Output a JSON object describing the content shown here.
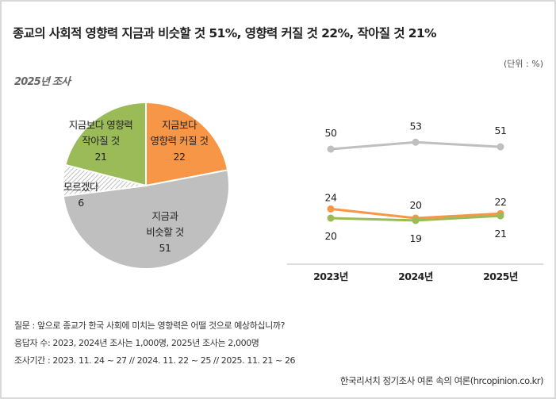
{
  "title": "종교의 사회적 영향력 지금과 비슷할 것 51%, 영향력 커질 것 22%, 작아질 것 21%",
  "unit": "(단위 : %)",
  "subtitle": "2025년 조사",
  "colors": {
    "increase": "#f79646",
    "similar": "#bfbfbf",
    "unknown": "hatched",
    "decrease": "#9bbb59"
  },
  "chart_data": [
    {
      "type": "pie",
      "title": "2025년 조사",
      "slices": [
        {
          "label": "지금보다 영향력 커질 것",
          "value": 22,
          "color": "#f79646",
          "lines": [
            "지금보다",
            "영향력 커질 것"
          ]
        },
        {
          "label": "지금과 비슷할 것",
          "value": 51,
          "color": "#bfbfbf",
          "lines": [
            "지금과",
            "비슷할 것"
          ]
        },
        {
          "label": "모르겠다",
          "value": 6,
          "color": "hatched",
          "lines": [
            "모르겠다"
          ]
        },
        {
          "label": "지금보다 영향력 작아질 것",
          "value": 21,
          "color": "#9bbb59",
          "lines": [
            "지금보다 영향력",
            "작아질 것"
          ]
        }
      ]
    },
    {
      "type": "line",
      "categories": [
        "2023년",
        "2024년",
        "2025년"
      ],
      "series": [
        {
          "values": [
            50,
            53,
            51
          ],
          "color": "#bfbfbf"
        },
        {
          "values": [
            24,
            20,
            22
          ],
          "color": "#f79646"
        },
        {
          "values": [
            20,
            19,
            21
          ],
          "color": "#9bbb59"
        }
      ],
      "grid": false
    }
  ],
  "footer": {
    "question": "질문 : 앞으로 종교가 한국 사회에 미치는 영향력은 어떨 것으로 예상하십니까?",
    "respondents": "응답자 수: 2023, 2024년 조사는 1,000명, 2025년 조사는 2,000명",
    "period": "조사기간 : 2023. 11. 24 ~ 27 // 2024. 11. 22 ~ 25 // 2025. 11. 21 ~ 26",
    "source": "한국리서치 정기조사 여론 속의 여론(hrcopinion.co.kr)"
  }
}
